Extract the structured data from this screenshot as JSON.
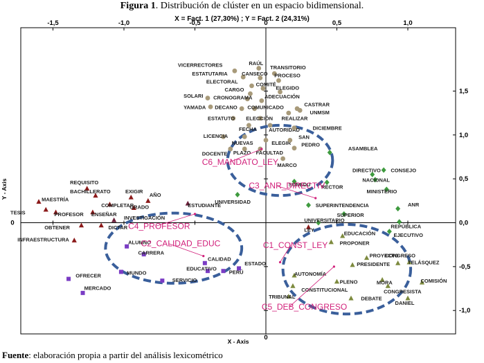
{
  "figure": {
    "label": "Figura 1",
    "caption": ". Distribución de clúster en un espacio bidimensional.",
    "axis_equation": "X = Fact. 1 (27,30%) ; Y = Fact. 2 (24,31%)",
    "source_label": "Fuente",
    "source_text": ": elaboración propia a partir del análisis lexicométrico"
  },
  "colors": {
    "c1": "#8b1a1a",
    "c2": "#7a3cc4",
    "c3": "#3f9b3f",
    "c4": "#6b1f3a",
    "c5": "#7d8a3e",
    "c6": "#a89a7a",
    "cluster_label": "#d11f7a",
    "ellipse": "#3a5f9b"
  },
  "chart_data": {
    "type": "scatter",
    "xlabel": "X - Axis",
    "ylabel": "Y - Axis",
    "xlim": [
      -1.85,
      1.3
    ],
    "ylim": [
      -1.12,
      1.88
    ],
    "x_ticks": [
      {
        "v": -1.5,
        "label": "-1,5"
      },
      {
        "v": -1.0,
        "label": "-1,0"
      },
      {
        "v": -0.5,
        "label": "-0,5"
      },
      {
        "v": 0.0,
        "label": "0"
      },
      {
        "v": 0.5,
        "label": "0,5"
      },
      {
        "v": 1.0,
        "label": "1,0"
      }
    ],
    "y_ticks": [
      {
        "v": 1.5,
        "label": "1,5"
      },
      {
        "v": 1.0,
        "label": "1,0"
      },
      {
        "v": 0.5,
        "label": "0,5"
      },
      {
        "v": 0.0,
        "label": "0,0"
      },
      {
        "v": -0.5,
        "label": "-0,5"
      },
      {
        "v": -1.0,
        "label": "-1,0"
      }
    ],
    "grid": false,
    "series": [
      {
        "name": "C6_MANDATO_LEY",
        "color_key": "c6",
        "marker": "circle",
        "points": [
          {
            "label": "VICERRECTORES",
            "x": -0.22,
            "y": 1.73,
            "lx": -0.62,
            "ly": 1.8
          },
          {
            "label": "RAÚL",
            "x": -0.05,
            "y": 1.76,
            "lx": -0.12,
            "ly": 1.82
          },
          {
            "label": "ESTATUTARIA",
            "x": -0.16,
            "y": 1.66,
            "lx": -0.52,
            "ly": 1.7
          },
          {
            "label": "CANSECO",
            "x": -0.04,
            "y": 1.65,
            "lx": -0.17,
            "ly": 1.7
          },
          {
            "label": "TRANSITORIO",
            "x": 0.06,
            "y": 1.7,
            "lx": 0.03,
            "ly": 1.77
          },
          {
            "label": "PROCESO",
            "x": 0.09,
            "y": 1.62,
            "lx": 0.06,
            "ly": 1.68
          },
          {
            "label": "ELECTORAL",
            "x": -0.1,
            "y": 1.56,
            "lx": -0.42,
            "ly": 1.61
          },
          {
            "label": "COMITÉ",
            "x": -0.02,
            "y": 1.53,
            "lx": -0.07,
            "ly": 1.58
          },
          {
            "label": "CARGO",
            "x": -0.11,
            "y": 1.47,
            "lx": -0.29,
            "ly": 1.52
          },
          {
            "label": "ELEGIDO",
            "x": 0.1,
            "y": 1.49,
            "lx": 0.07,
            "ly": 1.54
          },
          {
            "label": "SOLARI",
            "x": -0.41,
            "y": 1.42,
            "lx": -0.58,
            "ly": 1.45
          },
          {
            "label": "CRONOGRAMA",
            "x": -0.13,
            "y": 1.41,
            "lx": -0.37,
            "ly": 1.43
          },
          {
            "label": "ADECUACIÓN",
            "x": -0.03,
            "y": 1.39,
            "lx": -0.01,
            "ly": 1.44
          },
          {
            "label": "YAMADA",
            "x": -0.39,
            "y": 1.32,
            "lx": -0.58,
            "ly": 1.32
          },
          {
            "label": "DECANO",
            "x": -0.17,
            "y": 1.3,
            "lx": -0.36,
            "ly": 1.32
          },
          {
            "label": "COMUNICADO",
            "x": -0.08,
            "y": 1.3,
            "lx": -0.13,
            "ly": 1.32
          },
          {
            "label": "CASTRAR",
            "x": 0.22,
            "y": 1.3,
            "lx": 0.27,
            "ly": 1.35
          },
          {
            "label": "REALIZAR",
            "x": 0.16,
            "y": 1.25,
            "lx": 0.11,
            "ly": 1.19
          },
          {
            "label": "UNMSM",
            "x": 0.24,
            "y": 1.28,
            "lx": 0.31,
            "ly": 1.26
          },
          {
            "label": "ESTATUTO",
            "x": -0.23,
            "y": 1.19,
            "lx": -0.41,
            "ly": 1.19
          },
          {
            "label": "ELECCIÓN",
            "x": -0.04,
            "y": 1.19,
            "lx": -0.14,
            "ly": 1.19
          },
          {
            "label": "FECHA",
            "x": -0.12,
            "y": 1.11,
            "lx": -0.19,
            "ly": 1.07
          },
          {
            "label": "AUTORIDAD",
            "x": 0.03,
            "y": 1.11,
            "lx": 0.02,
            "ly": 1.06
          },
          {
            "label": "DICIEMBRE",
            "x": 0.2,
            "y": 1.08,
            "lx": 0.33,
            "ly": 1.08
          },
          {
            "label": "LICENCIA",
            "x": -0.3,
            "y": 0.98,
            "lx": -0.44,
            "ly": 0.99
          },
          {
            "label": "NUEVAS",
            "x": -0.15,
            "y": 0.98,
            "lx": -0.24,
            "ly": 0.91
          },
          {
            "label": "ELEGIR",
            "x": 0.0,
            "y": 0.94,
            "lx": 0.04,
            "ly": 0.91
          },
          {
            "label": "PEDRO",
            "x": 0.17,
            "y": 0.94,
            "lx": 0.25,
            "ly": 0.89
          },
          {
            "label": "SAN",
            "x": 0.2,
            "y": 0.85,
            "lx": 0.23,
            "ly": 0.98
          },
          {
            "label": "DOCENTE",
            "x": -0.25,
            "y": 0.84,
            "lx": -0.45,
            "ly": 0.79
          },
          {
            "label": "PLAZO",
            "x": -0.15,
            "y": 0.84,
            "lx": -0.23,
            "ly": 0.8
          },
          {
            "label": "FACULTAD",
            "x": -0.04,
            "y": 0.84,
            "lx": -0.07,
            "ly": 0.8
          },
          {
            "label": "MARCO",
            "x": 0.12,
            "y": 0.73,
            "lx": 0.08,
            "ly": 0.66
          }
        ]
      },
      {
        "name": "C3_ANR_DIRECTIV",
        "color_key": "c3",
        "marker": "diamond",
        "points": [
          {
            "label": "ASAMBLEA",
            "x": 0.45,
            "y": 0.8,
            "lx": 0.58,
            "ly": 0.85
          },
          {
            "label": "DIRECTIVO",
            "x": 0.75,
            "y": 0.55,
            "lx": 0.61,
            "ly": 0.6
          },
          {
            "label": "CONSEJO",
            "x": 0.83,
            "y": 0.6,
            "lx": 0.88,
            "ly": 0.6
          },
          {
            "label": "NACIONAL",
            "x": 0.77,
            "y": 0.49,
            "lx": 0.68,
            "ly": 0.49
          },
          {
            "label": "MINISTERIO",
            "x": 0.85,
            "y": 0.38,
            "lx": 0.71,
            "ly": 0.36
          },
          {
            "label": "SUNEDU",
            "x": 0.2,
            "y": 0.47,
            "lx": 0.16,
            "ly": 0.44
          },
          {
            "label": "RECTOR",
            "x": 0.43,
            "y": 0.46,
            "lx": 0.39,
            "ly": 0.41
          },
          {
            "label": "ANR",
            "x": 0.93,
            "y": 0.16,
            "lx": 1.0,
            "ly": 0.21
          },
          {
            "label": "SUPERINTENDENCIA",
            "x": 0.3,
            "y": 0.2,
            "lx": 0.35,
            "ly": 0.2
          },
          {
            "label": "SUPERIOR",
            "x": 0.55,
            "y": 0.1,
            "lx": 0.5,
            "ly": 0.09
          },
          {
            "label": "UNIVERSITARIO",
            "x": 0.37,
            "y": 0.0,
            "lx": 0.27,
            "ly": 0.03
          },
          {
            "label": "REPÚBLICA",
            "x": 0.94,
            "y": 0.01,
            "lx": 0.88,
            "ly": -0.04
          },
          {
            "label": "EJECUTIVO",
            "x": 0.87,
            "y": -0.1,
            "lx": 0.9,
            "ly": -0.14
          },
          {
            "label": "UNIVERSIDAD",
            "x": -0.2,
            "y": 0.32,
            "lx": -0.36,
            "ly": 0.24
          }
        ]
      },
      {
        "name": "C1_CONST_LEY",
        "color_key": "c1",
        "marker": "triangle",
        "points": [
          {
            "label": "REQUISITO",
            "x": -1.26,
            "y": 0.39,
            "lx": -1.38,
            "ly": 0.46
          },
          {
            "label": "BACHILLERATO",
            "x": -1.2,
            "y": 0.31,
            "lx": -1.38,
            "ly": 0.36
          },
          {
            "label": "EXIGIR",
            "x": -0.95,
            "y": 0.29,
            "lx": -0.99,
            "ly": 0.36
          },
          {
            "label": "AÑO",
            "x": -0.83,
            "y": 0.25,
            "lx": -0.82,
            "ly": 0.32
          },
          {
            "label": "MAESTRÍA",
            "x": -1.6,
            "y": 0.24,
            "lx": -1.58,
            "ly": 0.27
          },
          {
            "label": "COMPLETAR",
            "x": -1.1,
            "y": 0.21,
            "lx": -1.16,
            "ly": 0.2
          },
          {
            "label": "GRADO",
            "x": -0.93,
            "y": 0.17,
            "lx": -0.96,
            "ly": 0.18
          },
          {
            "label": "TESIS",
            "x": -1.55,
            "y": 0.15,
            "lx": -1.8,
            "ly": 0.12
          },
          {
            "label": "PROFESOR",
            "x": -1.48,
            "y": 0.12,
            "lx": -1.49,
            "ly": 0.1
          },
          {
            "label": "ENSEÑAR",
            "x": -1.22,
            "y": 0.12,
            "lx": -1.23,
            "ly": 0.1
          },
          {
            "label": "OBTENER",
            "x": -1.3,
            "y": -0.03,
            "lx": -1.56,
            "ly": -0.05
          },
          {
            "label": "DICTAR",
            "x": -1.16,
            "y": -0.03,
            "lx": -1.11,
            "ly": -0.05
          },
          {
            "label": "INFRAESTRUCTURA",
            "x": -1.35,
            "y": -0.2,
            "lx": -1.75,
            "ly": -0.19
          },
          {
            "label": "LEY",
            "x": 0.3,
            "y": -0.05,
            "lx": 0.27,
            "ly": -0.08
          }
        ]
      },
      {
        "name": "C4_PROFESOR",
        "color_key": "c4",
        "marker": "triangle",
        "points": [
          {
            "label": "INVESTIGACIÓN",
            "x": -1.07,
            "y": 0.03,
            "lx": -1.0,
            "ly": 0.06
          },
          {
            "label": "ESTUDIANTE",
            "x": -0.55,
            "y": 0.22,
            "lx": -0.55,
            "ly": 0.2
          }
        ]
      },
      {
        "name": "C2_CALIDAD_EDUC",
        "color_key": "c2",
        "marker": "square",
        "points": [
          {
            "label": "ALUMNO",
            "x": -0.98,
            "y": -0.27,
            "lx": -0.97,
            "ly": -0.22
          },
          {
            "label": "CARRERA",
            "x": -0.86,
            "y": -0.36,
            "lx": -0.9,
            "ly": -0.34
          },
          {
            "label": "CALIDAD",
            "x": -0.43,
            "y": -0.46,
            "lx": -0.41,
            "ly": -0.41
          },
          {
            "label": "EDUCATIVO",
            "x": -0.41,
            "y": -0.55,
            "lx": -0.56,
            "ly": -0.52
          },
          {
            "label": "ESTADO",
            "x": -0.19,
            "y": -0.52,
            "lx": -0.15,
            "ly": -0.46
          },
          {
            "label": "PERÚ",
            "x": -0.3,
            "y": -0.55,
            "lx": -0.26,
            "ly": -0.56
          },
          {
            "label": "MUNDO",
            "x": -1.02,
            "y": -0.56,
            "lx": -0.98,
            "ly": -0.57
          },
          {
            "label": "OFRECER",
            "x": -1.39,
            "y": -0.64,
            "lx": -1.34,
            "ly": -0.6
          },
          {
            "label": "SERVICIO",
            "x": -0.73,
            "y": -0.66,
            "lx": -0.66,
            "ly": -0.65
          },
          {
            "label": "MERCADO",
            "x": -1.29,
            "y": -0.8,
            "lx": -1.28,
            "ly": -0.74
          }
        ]
      },
      {
        "name": "C5_DEB_CONGRESO",
        "color_key": "c5",
        "marker": "triangle",
        "points": [
          {
            "label": "EDUCACIÓN",
            "x": 0.54,
            "y": -0.15,
            "lx": 0.55,
            "ly": -0.12
          },
          {
            "label": "PROPONER",
            "x": 0.46,
            "y": -0.22,
            "lx": 0.52,
            "ly": -0.23
          },
          {
            "label": "PROYECTO",
            "x": 0.71,
            "y": -0.4,
            "lx": 0.73,
            "ly": -0.37
          },
          {
            "label": "PRESIDENTE",
            "x": 0.61,
            "y": -0.48,
            "lx": 0.64,
            "ly": -0.47
          },
          {
            "label": "CONGRESO",
            "x": 0.93,
            "y": -0.46,
            "lx": 0.84,
            "ly": -0.37
          },
          {
            "label": "TELÁSQUEZ",
            "x": 1.01,
            "y": -0.45,
            "lx": 1.0,
            "ly": -0.45
          },
          {
            "label": "AUTONOMÍA",
            "x": 0.2,
            "y": -0.6,
            "lx": 0.2,
            "ly": -0.58
          },
          {
            "label": "PLENO",
            "x": 0.5,
            "y": -0.67,
            "lx": 0.52,
            "ly": -0.67
          },
          {
            "label": "MORA",
            "x": 0.82,
            "y": -0.65,
            "lx": 0.78,
            "ly": -0.68
          },
          {
            "label": "CONGRESISTA",
            "x": 0.86,
            "y": -0.72,
            "lx": 0.83,
            "ly": -0.78
          },
          {
            "label": "COMISIÓN",
            "x": 1.1,
            "y": -0.68,
            "lx": 1.09,
            "ly": -0.66
          },
          {
            "label": "CONSTITUCIONAL",
            "x": 0.19,
            "y": -0.72,
            "lx": 0.25,
            "ly": -0.76
          },
          {
            "label": "TRIBUNAL",
            "x": 0.16,
            "y": -0.84,
            "lx": 0.02,
            "ly": -0.84
          },
          {
            "label": "DEBATE",
            "x": 0.6,
            "y": -0.86,
            "lx": 0.67,
            "ly": -0.86
          },
          {
            "label": "DANIEL",
            "x": 1.0,
            "y": -0.86,
            "lx": 0.91,
            "ly": -0.91
          }
        ]
      }
    ],
    "cluster_labels": [
      {
        "text": "C6_MANDATO_LEY",
        "x": -0.45,
        "y": 0.66,
        "px": -0.03,
        "py": 0.84
      },
      {
        "text": "C3_ANR_DIRECTIV",
        "x": -0.12,
        "y": 0.39,
        "px": 0.35,
        "py": 0.28
      },
      {
        "text": "C4_PROFESOR",
        "x": -0.97,
        "y": -0.07,
        "px": -0.5,
        "py": 0.1
      },
      {
        "text": "C2_CALIDAD_EDUC",
        "x": -0.88,
        "y": -0.27,
        "px": -0.44,
        "py": -0.38
      },
      {
        "text": "C1_CONST_LEY",
        "x": -0.02,
        "y": -0.29,
        "px": 0.1,
        "py": -0.45
      },
      {
        "text": "C5_DEB_CONGRESO",
        "x": -0.03,
        "y": -0.99,
        "px": 0.48,
        "py": -0.5
      }
    ],
    "ellipses": [
      {
        "cx": 0.1,
        "cy": 0.71,
        "rx": 0.37,
        "ry": 0.4
      },
      {
        "cx": -0.65,
        "cy": -0.29,
        "rx": 0.48,
        "ry": 0.4
      },
      {
        "cx": 0.57,
        "cy": -0.53,
        "rx": 0.45,
        "ry": 0.51
      }
    ]
  }
}
